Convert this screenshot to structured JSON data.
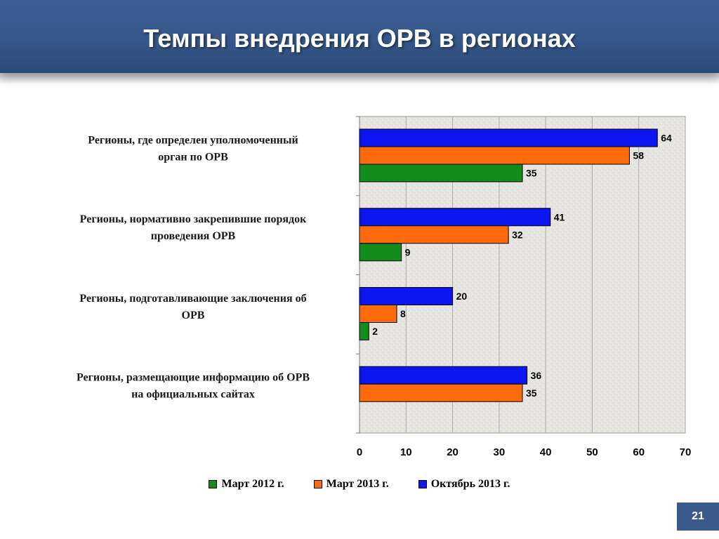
{
  "slide": {
    "title": "Темпы внедрения ОРВ в регионах",
    "page_number": "21"
  },
  "chart_data": {
    "type": "bar",
    "orientation": "horizontal",
    "title": "",
    "xlabel": "",
    "ylabel": "",
    "xlim": [
      0,
      70
    ],
    "x_ticks": [
      0,
      10,
      20,
      30,
      40,
      50,
      60,
      70
    ],
    "grid": true,
    "legend_position": "bottom",
    "categories": [
      "Регионы, где определен уполномоченный орган по ОРВ",
      "Регионы, нормативно закрепившие порядок проведения ОРВ",
      "Регионы, подготавливающие заключения об ОРВ",
      "Регионы, размещающие информацию об ОРВ на официальных сайтах"
    ],
    "category_lines": [
      [
        "Регионы, где определен уполномоченный",
        "орган по ОРВ"
      ],
      [
        "Регионы, нормативно закрепившие порядок",
        "проведения ОРВ"
      ],
      [
        "Регионы, подготавливающие заключения об",
        "ОРВ"
      ],
      [
        "Регионы, размещающие информацию об ОРВ",
        "на официальных сайтах"
      ]
    ],
    "series": [
      {
        "name": "Октябрь 2013 г.",
        "color": "#0b16f0",
        "values": [
          64,
          41,
          20,
          36
        ]
      },
      {
        "name": "Март 2013 г.",
        "color": "#ff6a0d",
        "values": [
          58,
          32,
          8,
          35
        ]
      },
      {
        "name": "Март 2012 г.",
        "color": "#128c1b",
        "values": [
          35,
          9,
          2,
          null
        ]
      }
    ],
    "legend_order": [
      "Март 2012 г.",
      "Март 2013 г.",
      "Октябрь 2013 г."
    ]
  }
}
